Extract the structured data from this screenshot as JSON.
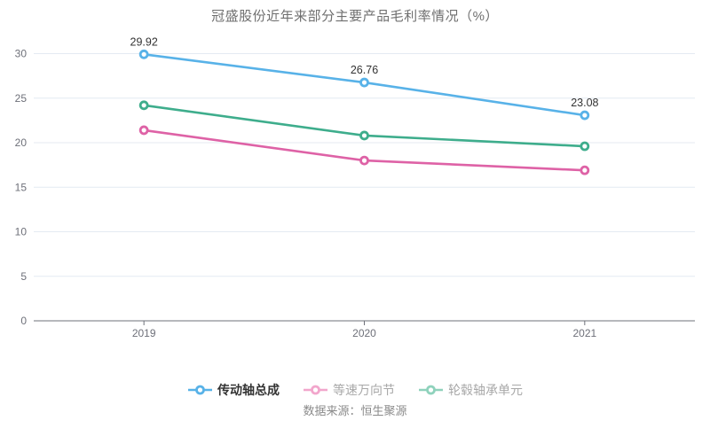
{
  "page": {
    "title": "冠盛股份近年来部分主要产品毛利率情况（%）",
    "source": "数据来源：恒生聚源"
  },
  "chart_data": {
    "type": "line",
    "title": "冠盛股份近年来部分主要产品毛利率情况（%）",
    "categories": [
      "2019",
      "2020",
      "2021"
    ],
    "series": [
      {
        "name": "传动轴总成",
        "color": "#58B2E8",
        "values": [
          29.92,
          26.76,
          23.08
        ],
        "show_value_labels": true,
        "value_labels": [
          "29.92",
          "26.76",
          "23.08"
        ]
      },
      {
        "name": "等速万向节",
        "color": "#DE62A6",
        "values": [
          21.4,
          18.0,
          16.9
        ],
        "show_value_labels": false,
        "value_labels": []
      },
      {
        "name": "轮毂轴承单元",
        "color": "#3EAD8C",
        "values": [
          24.2,
          20.8,
          19.6
        ],
        "show_value_labels": false,
        "value_labels": []
      }
    ],
    "ylim": [
      0,
      30
    ],
    "yticks": [
      0,
      5,
      10,
      15,
      20,
      25,
      30
    ],
    "xlabel": "",
    "ylabel": "",
    "grid": true,
    "legend_position": "bottom"
  },
  "legend": {
    "items": [
      {
        "label": "传动轴总成",
        "marker_color": "#58B2E8",
        "text_color": "#333333",
        "bold": true
      },
      {
        "label": "等速万向节",
        "marker_color": "#F2A6CC",
        "text_color": "#A8A8A8",
        "bold": false
      },
      {
        "label": "轮毂轴承单元",
        "marker_color": "#8FD2BC",
        "text_color": "#A8A8A8",
        "bold": false
      }
    ]
  },
  "style": {
    "grid_color": "#E4EAF2",
    "axis_color": "#6E7079",
    "tick_label_color": "#6E7079",
    "value_label_color": "#333333"
  }
}
